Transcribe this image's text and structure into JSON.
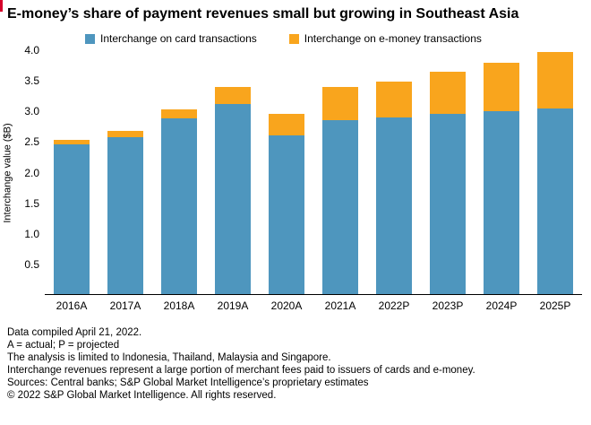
{
  "title": "E-money’s share of payment revenues small but growing in Southeast Asia",
  "accent_color": "#d6002a",
  "legend": [
    {
      "label": "Interchange on card transactions",
      "color": "#4e96be"
    },
    {
      "label": "Interchange on e-money transactions",
      "color": "#f9a51d"
    }
  ],
  "chart_data": {
    "type": "bar",
    "stacked": true,
    "categories": [
      "2016A",
      "2017A",
      "2018A",
      "2019A",
      "2020A",
      "2021A",
      "2022P",
      "2023P",
      "2024P",
      "2025P"
    ],
    "series": [
      {
        "name": "Interchange on card transactions",
        "color": "#4e96be",
        "values": [
          2.45,
          2.57,
          2.88,
          3.12,
          2.6,
          2.85,
          2.9,
          2.95,
          3.0,
          3.05
        ]
      },
      {
        "name": "Interchange on e-money transactions",
        "color": "#f9a51d",
        "values": [
          0.08,
          0.11,
          0.15,
          0.28,
          0.35,
          0.55,
          0.59,
          0.7,
          0.8,
          0.92
        ]
      }
    ],
    "title": "E-money’s share of payment revenues small but growing in Southeast Asia",
    "xlabel": "",
    "ylabel": "Interchange value ($B)",
    "ylim": [
      0,
      4.0
    ],
    "yticks": [
      4.0,
      3.5,
      3.0,
      2.5,
      2.0,
      1.5,
      1.0,
      0.5
    ],
    "grid": false,
    "legend_position": "top"
  },
  "footer": {
    "lines": [
      "Data compiled April 21, 2022.",
      "A = actual; P = projected",
      "The analysis is limited to Indonesia, Thailand, Malaysia and Singapore.",
      "Interchange revenues represent a large portion of merchant fees paid to issuers of cards and e-money.",
      "Sources: Central banks; S&P Global Market Intelligence’s proprietary estimates",
      "© 2022 S&P Global Market Intelligence. All rights reserved."
    ]
  }
}
